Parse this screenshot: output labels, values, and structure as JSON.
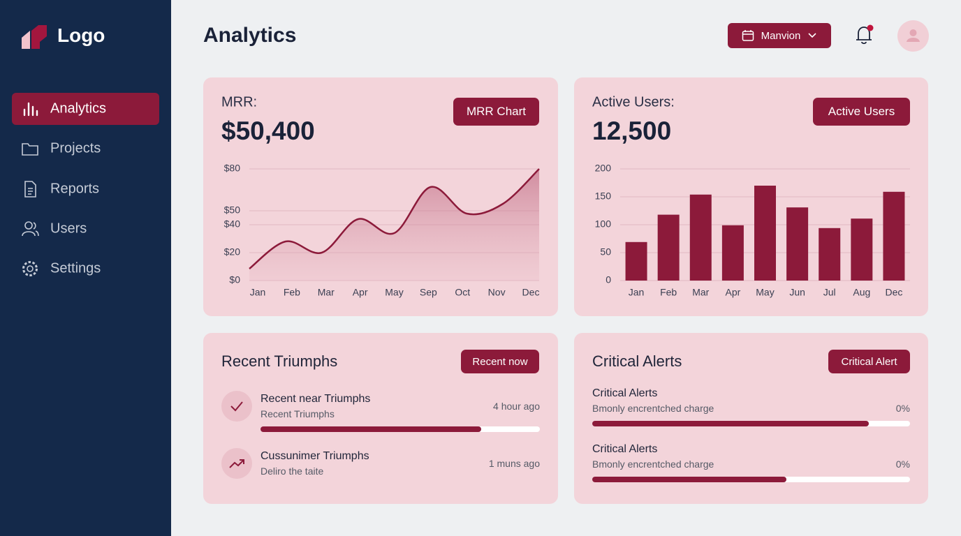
{
  "sidebar": {
    "logo": "Logo",
    "nav": [
      "Analytics",
      "Projects",
      "Reports",
      "Users",
      "Settings"
    ]
  },
  "header": {
    "title": "Analytics",
    "date_button": "Manvion"
  },
  "chart_data": [
    {
      "type": "line",
      "title": "MRR:",
      "headline": "$50,400",
      "button": "MRR Chart",
      "categories": [
        "Jan",
        "Feb",
        "Mar",
        "Apr",
        "May",
        "Sep",
        "Oct",
        "Nov",
        "Dec"
      ],
      "values": [
        8.5,
        28,
        20,
        44,
        34,
        67,
        48,
        55,
        80
      ],
      "color": "#8c1a3a",
      "ylim": [
        0,
        80
      ],
      "yticks": [
        {
          "value": 0,
          "label": "$0"
        },
        {
          "value": 20,
          "label": "$20"
        },
        {
          "value": 40,
          "label": "$40"
        },
        {
          "value": 50,
          "label": "$50"
        },
        {
          "value": 80,
          "label": "$80"
        }
      ],
      "grid": true
    },
    {
      "type": "bar",
      "title": "Active Users:",
      "headline": "12,500",
      "button": "Active Users",
      "categories": [
        "Jan",
        "Feb",
        "Mar",
        "Apr",
        "May",
        "Jun",
        "Jul",
        "Aug",
        "Dec"
      ],
      "values": [
        69,
        118,
        154,
        99,
        170,
        131,
        94,
        111,
        159
      ],
      "color": "#8c1a3a",
      "ylim": [
        0,
        200
      ],
      "yticks": [
        0,
        50,
        100,
        150,
        200
      ],
      "grid": true
    }
  ],
  "panels": {
    "triumphs": {
      "title": "Recent Triumphs",
      "button": "Recent now",
      "items": [
        {
          "title": "Recent near Triumphs",
          "subtitle": "Recent Triumphs",
          "time": "4 hour ago",
          "progress": 79
        },
        {
          "title": "Cussunimer Triumphs",
          "subtitle": "Deliro the taite",
          "time": "1 muns ago"
        }
      ]
    },
    "alerts": {
      "title": "Critical Alerts",
      "button": "Critical Alert",
      "items": [
        {
          "title": "Critical Alerts",
          "subtitle": "Bmonly encrentched charge",
          "status": "0%",
          "progress": 87
        },
        {
          "title": "Critical Alerts",
          "subtitle": "Bmonly encrentched charge",
          "status": "0%",
          "progress": 61
        }
      ]
    }
  }
}
